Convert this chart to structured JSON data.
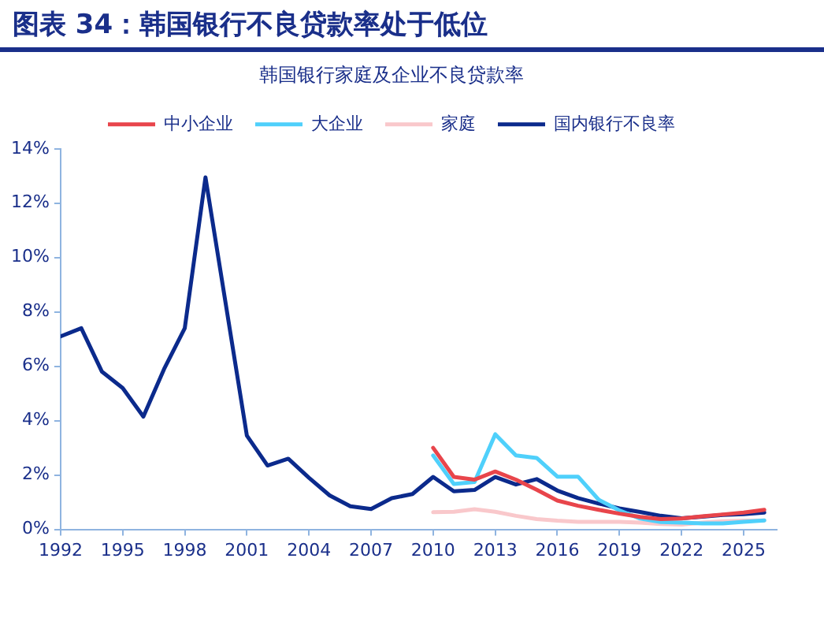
{
  "chart_data": {
    "type": "line",
    "title": "图表 34：韩国银行不良贷款率处于低位",
    "subtitle": "韩国银行家庭及企业不良贷款率",
    "xlim": [
      1992,
      2026.6
    ],
    "xticks": [
      1992,
      1995,
      1998,
      2001,
      2004,
      2007,
      2010,
      2013,
      2016,
      2019,
      2022,
      2025
    ],
    "ylim": [
      0,
      14
    ],
    "yticks": [
      {
        "value": 0,
        "label": "0%"
      },
      {
        "value": 2,
        "label": "2%"
      },
      {
        "value": 4,
        "label": "4%"
      },
      {
        "value": 6,
        "label": "6%"
      },
      {
        "value": 8,
        "label": "8%"
      },
      {
        "value": 10,
        "label": "10%"
      },
      {
        "value": 12,
        "label": "12%"
      },
      {
        "value": 14,
        "label": "14%"
      }
    ],
    "grid": false,
    "legend": "top",
    "marker": "none",
    "line_style": "solid",
    "series": [
      {
        "name": "中小企业",
        "color": "#e8454b",
        "x": [
          2010,
          2011,
          2012,
          2013,
          2014,
          2015,
          2016,
          2017,
          2018,
          2019,
          2020,
          2021,
          2022,
          2023,
          2024,
          2025,
          2026
        ],
        "values": [
          3.0,
          1.93,
          1.83,
          2.13,
          1.83,
          1.46,
          1.06,
          0.87,
          0.72,
          0.58,
          0.46,
          0.38,
          0.4,
          0.48,
          0.55,
          0.62,
          0.72
        ]
      },
      {
        "name": "大企业",
        "color": "#4fd0fb",
        "x": [
          2010,
          2011,
          2012,
          2013,
          2014,
          2015,
          2016,
          2017,
          2018,
          2019,
          2020,
          2021,
          2022,
          2023,
          2024,
          2025,
          2026
        ],
        "values": [
          2.72,
          1.67,
          1.74,
          3.5,
          2.72,
          2.63,
          1.94,
          1.94,
          1.09,
          0.7,
          0.4,
          0.27,
          0.25,
          0.22,
          0.22,
          0.28,
          0.33
        ]
      },
      {
        "name": "家庭",
        "color": "#f9c8cb",
        "x": [
          2010,
          2011,
          2012,
          2013,
          2014,
          2015,
          2016,
          2017,
          2018,
          2019,
          2020,
          2021,
          2022,
          2023,
          2024,
          2025,
          2026
        ],
        "values": [
          0.63,
          0.65,
          0.74,
          0.65,
          0.5,
          0.38,
          0.32,
          0.28,
          0.28,
          0.28,
          0.25,
          0.2,
          0.18,
          0.25,
          0.3,
          0.32,
          0.33
        ]
      },
      {
        "name": "国内银行不良率",
        "color": "#0b2a8c",
        "x": [
          1992,
          1993,
          1994,
          1995,
          1996,
          1997,
          1998,
          1999,
          2000,
          2001,
          2002,
          2003,
          2004,
          2005,
          2006,
          2007,
          2008,
          2009,
          2010,
          2011,
          2012,
          2013,
          2014,
          2015,
          2016,
          2017,
          2018,
          2019,
          2020,
          2021,
          2022,
          2023,
          2024,
          2025,
          2026
        ],
        "values": [
          7.1,
          7.4,
          5.8,
          5.2,
          4.15,
          5.9,
          7.4,
          12.95,
          8.2,
          3.45,
          2.35,
          2.6,
          1.9,
          1.25,
          0.85,
          0.75,
          1.15,
          1.3,
          1.93,
          1.4,
          1.45,
          1.93,
          1.65,
          1.85,
          1.43,
          1.15,
          0.95,
          0.77,
          0.64,
          0.5,
          0.41,
          0.47,
          0.53,
          0.56,
          0.62
        ]
      }
    ]
  }
}
